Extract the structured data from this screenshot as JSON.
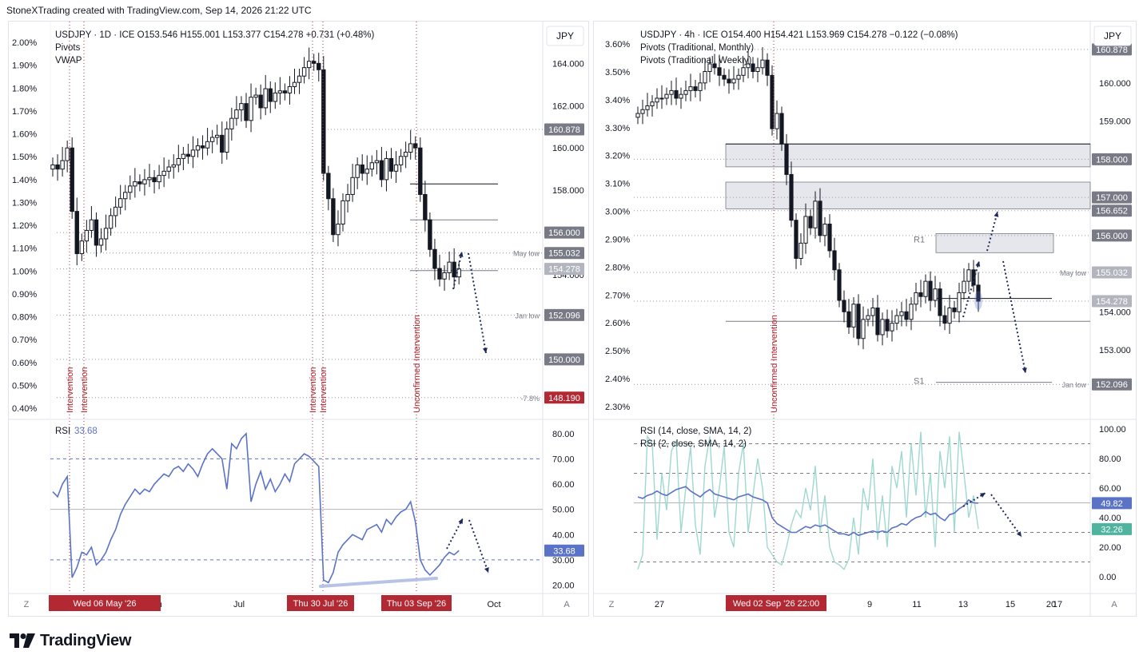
{
  "header": {
    "credit": "StoneXTrading created with TradingView.com, Sep 14, 2026 21:22 UTC"
  },
  "brand": {
    "name": "TradingView"
  },
  "colors": {
    "up": "#131722",
    "line_blue": "#5b73c7",
    "rsi_fast": "#9fd8d0",
    "marker_red": "#b22833",
    "price_tag": "#787b86",
    "zone": "#d1d4dc"
  },
  "left": {
    "legend": {
      "symbol": "USDJPY · 1D · ICE",
      "ohlc": "O153.546   H155.001   L153.377   C154.278   +0.731 (+0.48%)",
      "line2": "Pivots",
      "line3": "VWAP"
    },
    "currency_button": "JPY",
    "price_labels": [
      "164.000",
      "162.000",
      "160.000",
      "158.000",
      "154.000"
    ],
    "pct_labels": [
      "2.00%",
      "1.90%",
      "1.80%",
      "1.70%",
      "1.60%",
      "1.50%",
      "1.40%",
      "1.30%",
      "1.20%",
      "1.10%",
      "1.00%",
      "0.90%",
      "0.80%",
      "0.70%",
      "0.60%",
      "0.50%",
      "0.40%"
    ],
    "price_tags": [
      {
        "label": "160.878",
        "note": ""
      },
      {
        "label": "156.000",
        "note": ""
      },
      {
        "label": "155.032",
        "note": "May low"
      },
      {
        "label": "154.278",
        "note": ""
      },
      {
        "label": "152.096",
        "note": "Jan low"
      },
      {
        "label": "150.000",
        "note": ""
      },
      {
        "label": "148.190",
        "note": "-7.8%"
      }
    ],
    "vertical_labels": [
      "Intervention",
      "Intervention",
      "Intervention",
      "Intervention",
      "Unconfirmed Intervention"
    ],
    "rsi_legend": {
      "name": "RSI",
      "value": "33.68"
    },
    "rsi_axis": [
      "80.00",
      "70.00",
      "60.00",
      "50.00",
      "40.00",
      "30.00",
      "20.00"
    ],
    "rsi_tag": "33.68",
    "time_labels": [
      "Jun",
      "Jul",
      "Oct"
    ],
    "date_tags": [
      "Wed 06 May '26",
      "Thu 30 Jul '26",
      "Thu 03 Sep '26"
    ],
    "corner_left": "Z",
    "corner_right": "A"
  },
  "right": {
    "legend": {
      "symbol": "USDJPY · 4h · ICE",
      "ohlc": "O154.400   H154.421   L153.969   C154.278   −0.122 (−0.08%)",
      "line2": "Pivots (Traditional, Monthly)",
      "line3": "Pivots (Traditional, Weekly)"
    },
    "currency_button": "JPY",
    "price_labels": [
      "160.000",
      "159.000",
      "154.000",
      "153.000"
    ],
    "pct_labels": [
      "3.60%",
      "3.50%",
      "3.40%",
      "3.30%",
      "3.20%",
      "3.10%",
      "3.00%",
      "2.90%",
      "2.80%",
      "2.70%",
      "2.60%",
      "2.50%",
      "2.40%",
      "2.30%"
    ],
    "price_tags": [
      {
        "label": "160.878",
        "note": ""
      },
      {
        "label": "158.000",
        "note": ""
      },
      {
        "label": "157.000",
        "note": ""
      },
      {
        "label": "156.652",
        "note": ""
      },
      {
        "label": "156.000",
        "note": ""
      },
      {
        "label": "155.032",
        "note": "May low"
      },
      {
        "label": "154.278",
        "note": ""
      },
      {
        "label": "152.096",
        "note": "Jan low"
      }
    ],
    "pivot_labels": [
      "R1",
      "S1"
    ],
    "vertical_labels": [
      "Unconfirmed Intervention"
    ],
    "rsi_legend": {
      "line1": "RSI (14, close, SMA, 14, 2)",
      "line2": "RSI (2, close, SMA, 14, 2)"
    },
    "rsi_axis": [
      "100.00",
      "80.00",
      "60.00",
      "40.00",
      "20.00",
      "0.00"
    ],
    "rsi_tags": [
      "49.82",
      "32.26"
    ],
    "time_labels": [
      "27",
      "9",
      "11",
      "13",
      "15",
      "17",
      "20"
    ],
    "date_tags": [
      "Wed 02 Sep '26   22:00"
    ],
    "corner_left": "Z",
    "corner_right": "A"
  },
  "chart_data": [
    {
      "type": "candlestick",
      "title": "USDJPY · 1D · ICE",
      "ylim": [
        147.2,
        165.6
      ],
      "y_ticks": [
        164,
        162,
        160,
        158,
        156,
        154,
        152,
        150
      ],
      "levels": [
        160.878,
        156.0,
        155.032,
        154.278,
        152.096,
        150.0,
        148.19
      ],
      "close": [
        159.2,
        159.0,
        159.4,
        160.0,
        157.0,
        155.0,
        155.6,
        156.1,
        156.6,
        155.4,
        155.7,
        156.2,
        156.8,
        157.2,
        157.6,
        157.9,
        158.2,
        158.4,
        158.3,
        158.5,
        158.6,
        158.4,
        158.7,
        158.9,
        159.1,
        159.2,
        159.5,
        159.7,
        159.6,
        159.9,
        160.1,
        160.0,
        160.3,
        160.5,
        160.6,
        159.8,
        160.9,
        161.4,
        161.8,
        162.1,
        161.3,
        162.4,
        162.5,
        161.9,
        162.8,
        162.2,
        162.6,
        162.7,
        162.6,
        162.9,
        163.1,
        163.4,
        163.8,
        164.1,
        164.0,
        163.7,
        158.8,
        157.6,
        155.9,
        156.4,
        157.5,
        157.8,
        158.6,
        159.2,
        158.8,
        159.0,
        159.3,
        159.4,
        158.5,
        159.5,
        158.9,
        159.2,
        159.6,
        159.8,
        160.2,
        160.0,
        157.8,
        156.6,
        155.2,
        154.3,
        153.8,
        154.1,
        154.6,
        153.9,
        154.278
      ],
      "rsi": {
        "ylim": [
          17,
          85
        ],
        "levels": [
          70,
          50,
          30
        ],
        "values": [
          57,
          55,
          60,
          63,
          23,
          27,
          33,
          32,
          35,
          28,
          30,
          33,
          38,
          42,
          48,
          52,
          55,
          58,
          56,
          58,
          57,
          60,
          62,
          64,
          63,
          66,
          67,
          65,
          68,
          66,
          63,
          68,
          72,
          74,
          72,
          70,
          58,
          76,
          74,
          78,
          80,
          53,
          60,
          65,
          58,
          62,
          57,
          60,
          64,
          61,
          68,
          70,
          72,
          71,
          69,
          67,
          22,
          21,
          25,
          33,
          36,
          38,
          40,
          39,
          38,
          42,
          43,
          44,
          41,
          46,
          44,
          47,
          49,
          50,
          53,
          45,
          30,
          26,
          24,
          26,
          28,
          31,
          33,
          32,
          33.68
        ]
      },
      "x_labels": [
        "Jun",
        "Jul",
        "Oct"
      ],
      "events": [
        "Intervention",
        "Intervention",
        "Intervention",
        "Intervention",
        "Unconfirmed Intervention"
      ]
    },
    {
      "type": "candlestick",
      "title": "USDJPY · 4h · ICE",
      "ylim": [
        151.2,
        161.4
      ],
      "y_ticks": [
        160,
        159,
        158,
        157,
        156,
        155,
        154,
        153,
        152
      ],
      "levels": [
        160.878,
        158.0,
        157.0,
        156.652,
        156.0,
        155.032,
        154.278,
        152.096
      ],
      "zones": [
        [
          157.8,
          158.4
        ],
        [
          156.7,
          157.4
        ],
        [
          155.55,
          156.05
        ]
      ],
      "close": [
        159.2,
        159.3,
        159.4,
        159.5,
        159.6,
        159.6,
        159.7,
        159.8,
        159.6,
        159.7,
        159.8,
        159.9,
        159.8,
        160.0,
        160.3,
        160.5,
        160.4,
        160.2,
        160.1,
        160.0,
        160.1,
        160.2,
        160.4,
        160.5,
        160.3,
        160.4,
        160.6,
        160.2,
        158.8,
        159.2,
        158.4,
        157.6,
        156.4,
        155.4,
        155.8,
        156.5,
        156.2,
        156.9,
        156.0,
        156.3,
        155.6,
        155.1,
        154.3,
        154.0,
        153.6,
        154.2,
        153.3,
        153.8,
        153.9,
        154.1,
        153.4,
        153.8,
        153.5,
        153.7,
        153.9,
        154.0,
        153.8,
        154.2,
        154.5,
        154.4,
        154.8,
        154.3,
        154.6,
        153.9,
        153.7,
        154.1,
        154.0,
        154.5,
        154.8,
        155.1,
        154.7,
        154.278
      ],
      "rsi14": [
        54,
        53,
        55,
        56,
        58,
        56,
        55,
        57,
        59,
        60,
        61,
        58,
        56,
        54,
        57,
        59,
        56,
        55,
        54,
        53,
        52,
        54,
        55,
        56,
        54,
        53,
        52,
        50,
        40,
        36,
        34,
        32,
        30,
        30,
        32,
        34,
        33,
        35,
        34,
        35,
        33,
        31,
        29,
        29,
        28,
        30,
        28,
        29,
        30,
        31,
        30,
        31,
        30,
        33,
        34,
        36,
        35,
        38,
        40,
        41,
        44,
        42,
        43,
        40,
        38,
        42,
        43,
        46,
        48,
        52,
        50,
        49.82
      ],
      "rsi2": [
        5,
        15,
        95,
        90,
        25,
        70,
        45,
        85,
        92,
        30,
        60,
        88,
        35,
        15,
        75,
        95,
        40,
        60,
        88,
        30,
        20,
        70,
        90,
        30,
        55,
        80,
        60,
        20,
        15,
        10,
        8,
        20,
        35,
        45,
        40,
        60,
        45,
        75,
        30,
        55,
        20,
        10,
        8,
        5,
        12,
        40,
        15,
        60,
        45,
        80,
        25,
        55,
        20,
        75,
        60,
        85,
        40,
        90,
        55,
        98,
        40,
        70,
        20,
        85,
        60,
        95,
        30,
        98,
        70,
        40,
        55,
        32.26
      ],
      "x_labels": [
        "27",
        "9",
        "11",
        "13",
        "15",
        "17",
        "20"
      ],
      "pivots": {
        "R1": 156.0,
        "S1": 152.096
      },
      "events": [
        "Unconfirmed Intervention"
      ]
    }
  ]
}
